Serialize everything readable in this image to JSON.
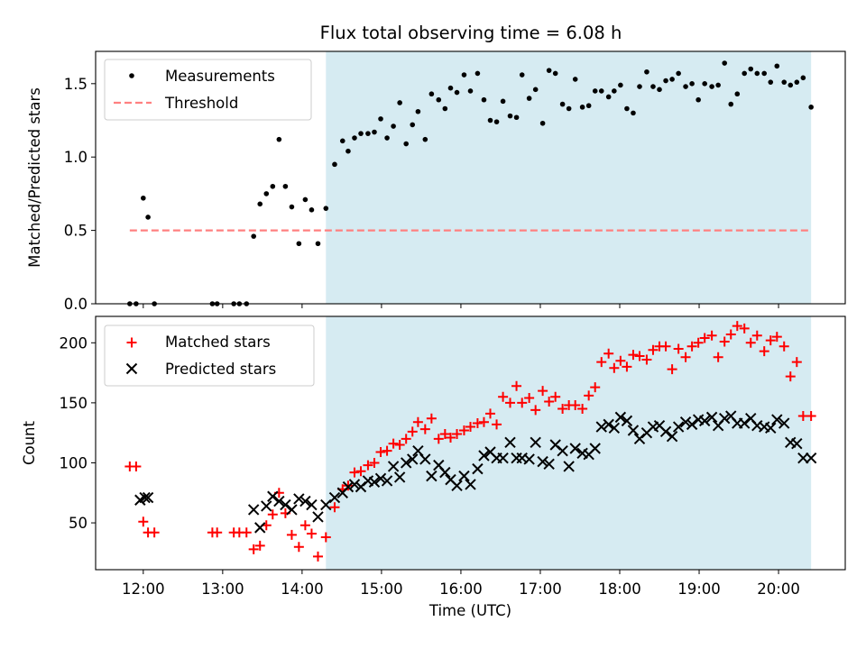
{
  "figure_title": "Flux total observing time = 6.08 h",
  "chart_data": [
    {
      "type": "scatter",
      "title": "Flux total observing time = 6.08 h",
      "xlabel": "",
      "ylabel": "Matched/Predicted stars",
      "x_unit": "hours UTC",
      "xlim": [
        11.4,
        20.84
      ],
      "ylim": [
        0,
        1.72
      ],
      "yticks": [
        0.0,
        0.5,
        1.0,
        1.5
      ],
      "ytick_labels": [
        "0.0",
        "0.5",
        "1.0",
        "1.5"
      ],
      "shaded_span": [
        14.3,
        20.41
      ],
      "legend": {
        "position": "top-left",
        "entries": [
          "Measurements",
          "Threshold"
        ]
      },
      "threshold": {
        "name": "Threshold",
        "y": 0.5,
        "x_range": [
          11.83,
          20.41
        ],
        "color": "#ff8080"
      },
      "series": [
        {
          "name": "Measurements",
          "x": [
            11.83,
            11.91,
            12.0,
            12.06,
            12.14,
            12.87,
            12.93,
            13.14,
            13.21,
            13.3,
            13.39,
            13.47,
            13.55,
            13.63,
            13.71,
            13.79,
            13.87,
            13.96,
            14.04,
            14.12,
            14.2,
            14.3,
            14.41,
            14.51,
            14.58,
            14.66,
            14.74,
            14.83,
            14.91,
            14.99,
            15.07,
            15.15,
            15.23,
            15.31,
            15.39,
            15.46,
            15.55,
            15.63,
            15.72,
            15.8,
            15.87,
            15.95,
            16.04,
            16.12,
            16.21,
            16.29,
            16.37,
            16.45,
            16.53,
            16.62,
            16.7,
            16.77,
            16.86,
            16.94,
            17.03,
            17.11,
            17.19,
            17.28,
            17.36,
            17.44,
            17.53,
            17.61,
            17.69,
            17.77,
            17.86,
            17.93,
            18.01,
            18.09,
            18.17,
            18.25,
            18.34,
            18.42,
            18.5,
            18.58,
            18.66,
            18.74,
            18.83,
            18.91,
            18.99,
            19.07,
            19.16,
            19.24,
            19.32,
            19.4,
            19.48,
            19.57,
            19.65,
            19.73,
            19.82,
            19.9,
            19.98,
            20.07,
            20.15,
            20.23,
            20.31,
            20.41
          ],
          "y": [
            0,
            0,
            0.72,
            0.59,
            0,
            0,
            0,
            0,
            0,
            0,
            0.46,
            0.68,
            0.75,
            0.8,
            1.12,
            0.8,
            0.66,
            0.41,
            0.71,
            0.64,
            0.41,
            0.65,
            0.95,
            1.11,
            1.04,
            1.13,
            1.16,
            1.16,
            1.17,
            1.26,
            1.13,
            1.21,
            1.37,
            1.09,
            1.22,
            1.31,
            1.12,
            1.43,
            1.39,
            1.33,
            1.47,
            1.44,
            1.56,
            1.45,
            1.57,
            1.39,
            1.25,
            1.24,
            1.38,
            1.28,
            1.27,
            1.56,
            1.4,
            1.46,
            1.23,
            1.59,
            1.57,
            1.36,
            1.33,
            1.53,
            1.34,
            1.35,
            1.45,
            1.45,
            1.41,
            1.45,
            1.49,
            1.33,
            1.3,
            1.48,
            1.58,
            1.48,
            1.46,
            1.52,
            1.53,
            1.57,
            1.48,
            1.5,
            1.39,
            1.5,
            1.48,
            1.49,
            1.64,
            1.36,
            1.43,
            1.57,
            1.6,
            1.57,
            1.57,
            1.51,
            1.62,
            1.51,
            1.49,
            1.51,
            1.54,
            1.34
          ]
        }
      ]
    },
    {
      "type": "scatter",
      "title": "",
      "xlabel": "Time (UTC)",
      "ylabel": "Count",
      "x_unit": "hours UTC",
      "xlim": [
        11.4,
        20.84
      ],
      "ylim": [
        11,
        222
      ],
      "xticks": [
        12,
        13,
        14,
        15,
        16,
        17,
        18,
        19,
        20
      ],
      "xtick_labels": [
        "12:00",
        "13:00",
        "14:00",
        "15:00",
        "16:00",
        "17:00",
        "18:00",
        "19:00",
        "20:00"
      ],
      "yticks": [
        50,
        100,
        150,
        200
      ],
      "ytick_labels": [
        "50",
        "100",
        "150",
        "200"
      ],
      "shaded_span": [
        14.3,
        20.41
      ],
      "legend": {
        "position": "top-left",
        "entries": [
          "Matched stars",
          "Predicted stars"
        ]
      },
      "series": [
        {
          "name": "Matched stars",
          "marker": "plus",
          "color": "#ff0000",
          "x": [
            11.83,
            11.91,
            12.0,
            12.06,
            12.14,
            12.87,
            12.93,
            13.14,
            13.21,
            13.3,
            13.39,
            13.47,
            13.55,
            13.63,
            13.71,
            13.79,
            13.87,
            13.96,
            14.04,
            14.12,
            14.2,
            14.3,
            14.41,
            14.51,
            14.58,
            14.66,
            14.74,
            14.83,
            14.91,
            14.99,
            15.07,
            15.15,
            15.23,
            15.31,
            15.39,
            15.46,
            15.55,
            15.63,
            15.72,
            15.8,
            15.87,
            15.95,
            16.04,
            16.12,
            16.21,
            16.29,
            16.37,
            16.45,
            16.53,
            16.62,
            16.7,
            16.77,
            16.86,
            16.94,
            17.03,
            17.11,
            17.19,
            17.28,
            17.36,
            17.44,
            17.53,
            17.61,
            17.69,
            17.77,
            17.86,
            17.93,
            18.01,
            18.09,
            18.17,
            18.25,
            18.34,
            18.42,
            18.5,
            18.58,
            18.66,
            18.74,
            18.83,
            18.91,
            18.99,
            19.07,
            19.16,
            19.24,
            19.32,
            19.4,
            19.48,
            19.57,
            19.65,
            19.73,
            19.82,
            19.9,
            19.98,
            20.07,
            20.15,
            20.23,
            20.31,
            20.41
          ],
          "y": [
            97,
            97,
            51,
            42,
            42,
            42,
            42,
            42,
            42,
            42,
            28,
            31,
            48,
            57,
            75,
            58,
            40,
            30,
            48,
            41,
            22,
            38,
            63,
            78,
            81,
            92,
            93,
            98,
            100,
            109,
            110,
            116,
            115,
            120,
            126,
            134,
            128,
            137,
            120,
            124,
            121,
            124,
            127,
            130,
            133,
            134,
            141,
            132,
            155,
            150,
            164,
            150,
            154,
            144,
            160,
            151,
            155,
            145,
            148,
            148,
            145,
            156,
            163,
            184,
            191,
            179,
            185,
            180,
            190,
            189,
            186,
            194,
            197,
            197,
            178,
            195,
            188,
            197,
            200,
            204,
            206,
            188,
            201,
            207,
            214,
            212,
            200,
            206,
            193,
            202,
            205,
            197,
            172,
            184,
            139,
            139
          ]
        },
        {
          "name": "Predicted stars",
          "marker": "x",
          "color": "#000000",
          "x": [
            11.96,
            12.02,
            12.06,
            13.39,
            13.47,
            13.55,
            13.63,
            13.71,
            13.79,
            13.87,
            13.96,
            14.04,
            14.12,
            14.2,
            14.3,
            14.41,
            14.51,
            14.58,
            14.66,
            14.74,
            14.83,
            14.91,
            14.99,
            15.07,
            15.15,
            15.23,
            15.31,
            15.39,
            15.46,
            15.55,
            15.63,
            15.72,
            15.8,
            15.87,
            15.95,
            16.04,
            16.12,
            16.21,
            16.29,
            16.37,
            16.45,
            16.53,
            16.62,
            16.7,
            16.77,
            16.86,
            16.94,
            17.03,
            17.11,
            17.19,
            17.28,
            17.36,
            17.44,
            17.53,
            17.61,
            17.69,
            17.77,
            17.86,
            17.93,
            18.01,
            18.09,
            18.17,
            18.25,
            18.34,
            18.42,
            18.5,
            18.58,
            18.66,
            18.74,
            18.83,
            18.91,
            18.99,
            19.07,
            19.16,
            19.24,
            19.32,
            19.4,
            19.48,
            19.57,
            19.65,
            19.73,
            19.82,
            19.9,
            19.98,
            20.07,
            20.15,
            20.23,
            20.31,
            20.41
          ],
          "y": [
            69,
            71,
            71,
            61,
            46,
            64,
            72,
            68,
            65,
            61,
            70,
            68,
            65,
            55,
            65,
            71,
            75,
            80,
            82,
            80,
            85,
            84,
            87,
            85,
            97,
            88,
            100,
            103,
            110,
            103,
            89,
            98,
            92,
            86,
            81,
            89,
            82,
            95,
            106,
            109,
            104,
            104,
            117,
            104,
            104,
            103,
            117,
            101,
            99,
            115,
            110,
            97,
            112,
            108,
            107,
            112,
            130,
            132,
            129,
            138,
            135,
            127,
            120,
            125,
            130,
            131,
            126,
            122,
            130,
            134,
            132,
            136,
            135,
            138,
            131,
            137,
            139,
            133,
            133,
            137,
            131,
            130,
            129,
            136,
            133,
            117,
            116,
            104,
            104
          ]
        }
      ]
    }
  ]
}
